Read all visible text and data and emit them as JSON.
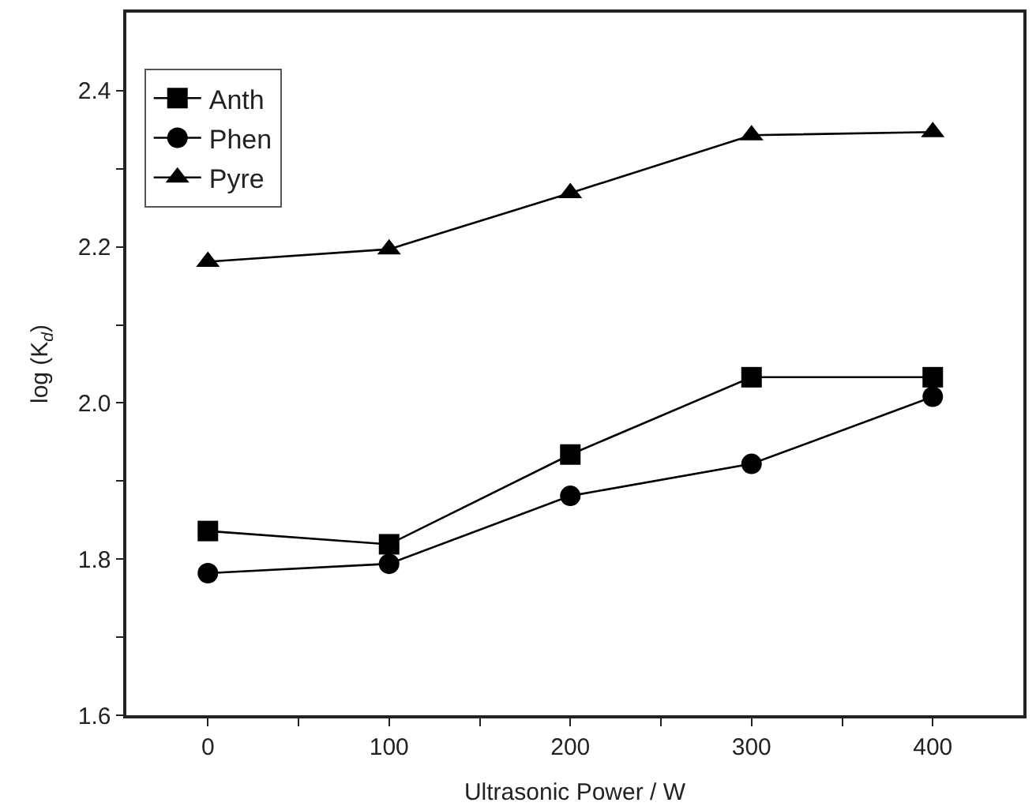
{
  "chart_data": {
    "type": "line",
    "xlabel": "Ultrasonic Power / W",
    "ylabel": "log (K$_{d}$)",
    "x": [
      0,
      100,
      200,
      300,
      400
    ],
    "series": [
      {
        "name": "Anth",
        "color": "#000000",
        "marker": "square",
        "values": [
          1.836,
          1.819,
          1.934,
          2.033,
          2.033
        ]
      },
      {
        "name": "Phen",
        "color": "#000000",
        "marker": "circle",
        "values": [
          1.782,
          1.794,
          1.881,
          1.922,
          2.008
        ]
      },
      {
        "name": "Pyre",
        "color": "#000000",
        "marker": "triangle",
        "values": [
          2.181,
          2.197,
          2.269,
          2.343,
          2.347
        ]
      }
    ],
    "xlim": [
      -45,
      450
    ],
    "xticks": [
      0,
      {
        "value": 50,
        "label": null
      },
      100,
      {
        "value": 150,
        "label": null
      },
      200,
      {
        "value": 250,
        "label": null
      },
      300,
      {
        "value": 350,
        "label": null
      },
      400
    ],
    "ylim": [
      1.6,
      2.5
    ],
    "yticks": [
      {
        "value": 1.6,
        "label": "1.6"
      },
      {
        "value": 1.7,
        "label": null
      },
      {
        "value": 1.8,
        "label": "1.8"
      },
      {
        "value": 1.9,
        "label": null
      },
      {
        "value": 2.0,
        "label": "2.0"
      },
      {
        "value": 2.1,
        "label": null
      },
      {
        "value": 2.2,
        "label": "2.2"
      },
      {
        "value": 2.3,
        "label": null
      },
      {
        "value": 2.4,
        "label": "2.4"
      }
    ],
    "legend": "top left",
    "line_style": "solid"
  }
}
